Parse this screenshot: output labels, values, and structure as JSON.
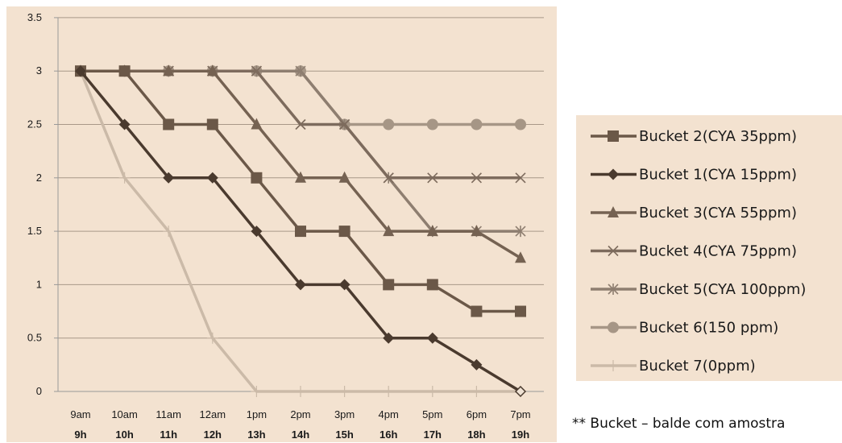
{
  "chart_data": {
    "type": "line",
    "x_labels_top": [
      "9am",
      "10am",
      "11am",
      "12am",
      "1pm",
      "2pm",
      "3pm",
      "4pm",
      "5pm",
      "6pm",
      "7pm"
    ],
    "x_labels_bottom": [
      "9h",
      "10h",
      "11h",
      "12h",
      "13h",
      "14h",
      "15h",
      "16h",
      "17h",
      "18h",
      "19h"
    ],
    "ylim": [
      0,
      3.5
    ],
    "y_ticks": [
      "0",
      "0.5",
      "1",
      "1.5",
      "2",
      "2.5",
      "3",
      "3.5"
    ],
    "grid": "horizontal",
    "legend_position": "right",
    "series": [
      {
        "name": "Bucket 2(CYA 35ppm)",
        "marker": "square",
        "color": "#6b5848",
        "values": [
          3,
          3,
          2.5,
          2.5,
          2,
          1.5,
          1.5,
          1,
          1,
          0.75,
          0.75
        ]
      },
      {
        "name": "Bucket 1(CYA 15ppm)",
        "marker": "diamond",
        "color": "#4a3a2e",
        "values": [
          3,
          2.5,
          2,
          2,
          1.5,
          1,
          1,
          0.5,
          0.5,
          0.25,
          0
        ]
      },
      {
        "name": "Bucket 3(CYA 55ppm)",
        "marker": "triangle",
        "color": "#756252",
        "values": [
          3,
          3,
          3,
          3,
          2.5,
          2,
          2,
          1.5,
          1.5,
          1.5,
          1.25
        ]
      },
      {
        "name": "Bucket 4(CYA 75ppm)",
        "marker": "x",
        "color": "#7d6b5d",
        "values": [
          3,
          3,
          3,
          3,
          3,
          2.5,
          2.5,
          2,
          2,
          2,
          2
        ]
      },
      {
        "name": "Bucket 5(CYA 100ppm)",
        "marker": "asterisk",
        "color": "#8e7e70",
        "values": [
          3,
          3,
          3,
          3,
          3,
          3,
          2.5,
          2,
          1.5,
          1.5,
          1.5
        ]
      },
      {
        "name": "Bucket 6(150 ppm)",
        "marker": "circle",
        "color": "#a69686",
        "values": [
          3,
          3,
          3,
          3,
          3,
          3,
          2.5,
          2.5,
          2.5,
          2.5,
          2.5
        ]
      },
      {
        "name": "Bucket 7(0ppm)",
        "marker": "plus",
        "color": "#cbbaa8",
        "values": [
          3,
          2,
          1.5,
          0.5,
          0,
          0,
          0,
          0,
          0,
          0,
          0
        ]
      }
    ]
  },
  "footnote": "** Bucket – balde com amostra",
  "colors": {
    "plot_background": "#f3e2d0",
    "grid": "#a89888",
    "axis": "#999999",
    "marker_fill": "#efe2d4"
  }
}
